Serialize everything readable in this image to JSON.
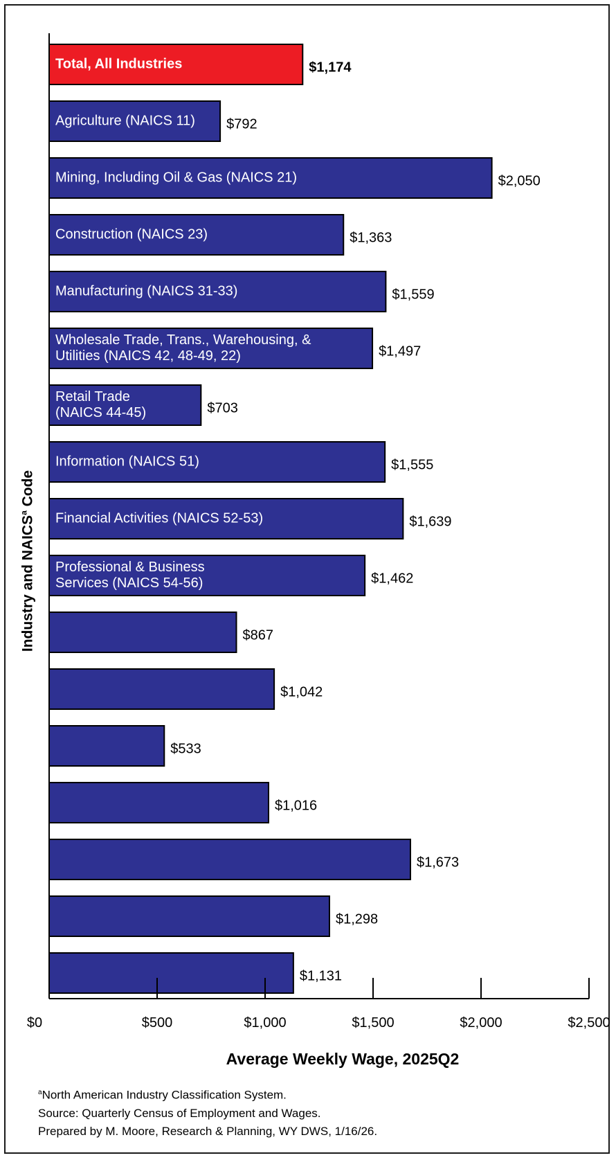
{
  "chart_data": {
    "type": "bar",
    "orientation": "horizontal",
    "xlabel": "Average Weekly Wage, 2025Q2",
    "ylabel": "Industry and NAICS",
    "ylabel_superscript": "a",
    "ylabel_suffix": " Code",
    "xlim": [
      0,
      2500
    ],
    "x_ticks": [
      "$0",
      "$500",
      "$1,000",
      "$1,500",
      "$2,000",
      "$2,500"
    ],
    "categories": [
      "Total, All Industries",
      "Agriculture (NAICS 11)",
      "Mining, Including Oil & Gas (NAICS 21)",
      "Construction (NAICS 23)",
      "Manufacturing (NAICS 31-33)",
      "Wholesale Trade, Trans., Warehousing, & Utilities (NAICS 42, 48-49, 22)",
      "Retail Trade (NAICS 44-45)",
      "Information (NAICS 51)",
      "Financial Activities (NAICS 52-53)",
      "Professional & Business Services (NAICS 54-56)",
      "",
      "",
      "",
      "",
      "",
      "",
      ""
    ],
    "category_lines": [
      [
        "Total, All Industries"
      ],
      [
        "Agriculture (NAICS 11)"
      ],
      [
        "Mining, Including Oil & Gas (NAICS 21)"
      ],
      [
        "Construction (NAICS 23)"
      ],
      [
        "Manufacturing (NAICS 31-33)"
      ],
      [
        "Wholesale Trade, Trans., Warehousing, &",
        "Utilities (NAICS 42, 48-49, 22)"
      ],
      [
        "Retail Trade",
        "(NAICS 44-45)"
      ],
      [
        "Information (NAICS 51)"
      ],
      [
        "Financial Activities (NAICS 52-53)"
      ],
      [
        "Professional & Business",
        "Services (NAICS 54-56)"
      ],
      [],
      [],
      [],
      [],
      [],
      [],
      []
    ],
    "values": [
      1174,
      792,
      2050,
      1363,
      1559,
      1497,
      703,
      1555,
      1639,
      1462,
      867,
      1042,
      533,
      1016,
      1673,
      1298,
      1131
    ],
    "value_labels": [
      "$1,174",
      "$792",
      "$2,050",
      "$1,363",
      "$1,559",
      "$1,497",
      "$703",
      "$1,555",
      "$1,639",
      "$1,462",
      "$867",
      "$1,042",
      "$533",
      "$1,016",
      "$1,673",
      "$1,298",
      "$1,131"
    ],
    "highlight_index": 0,
    "colors": {
      "bar": "#2e3192",
      "highlight": "#ed1c24",
      "label_on_bar": "#ffffff",
      "axis": "#000000"
    },
    "grid": false,
    "legend": "none"
  },
  "footnote": {
    "line1_superscript": "a",
    "line1": "North American Industry Classification System.",
    "line2": "Source: Quarterly Census of Employment and Wages.",
    "line3": "Prepared by M. Moore, Research & Planning, WY DWS, 1/16/26."
  }
}
